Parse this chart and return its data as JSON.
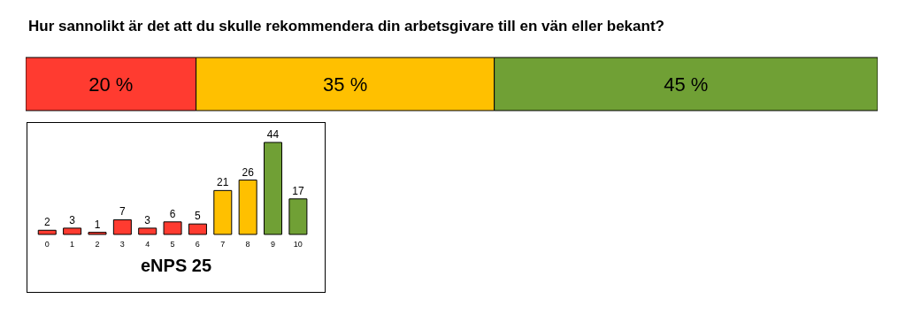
{
  "chart_data": [
    {
      "type": "bar",
      "orientation": "horizontal",
      "stacked": true,
      "title": "Hur sannolikt är det att du skulle rekommendera din arbetsgivare till en vän eller bekant?",
      "categories": [
        null
      ],
      "tick_labels": false,
      "legend": false,
      "grid": false,
      "series": [
        {
          "color": "#ff3b30",
          "values": [
            20
          ],
          "value_labels": [
            "20 %"
          ]
        },
        {
          "color": "#ffc000",
          "values": [
            35
          ],
          "value_labels": [
            "35 %"
          ]
        },
        {
          "color": "#70a035",
          "values": [
            45
          ],
          "value_labels": [
            "45 %"
          ]
        }
      ]
    },
    {
      "type": "bar",
      "xlabel": "eNPS 25",
      "categories": [
        "0",
        "1",
        "2",
        "3",
        "4",
        "5",
        "6",
        "7",
        "8",
        "9",
        "10"
      ],
      "values": [
        2,
        3,
        1,
        7,
        3,
        6,
        5,
        21,
        26,
        44,
        17
      ],
      "colors": [
        "#ff3b30",
        "#ff3b30",
        "#ff3b30",
        "#ff3b30",
        "#ff3b30",
        "#ff3b30",
        "#ff3b30",
        "#ffc000",
        "#ffc000",
        "#70a035",
        "#70a035"
      ],
      "data_labels": true,
      "tick_labels": "x",
      "legend": false,
      "grid": false
    }
  ]
}
